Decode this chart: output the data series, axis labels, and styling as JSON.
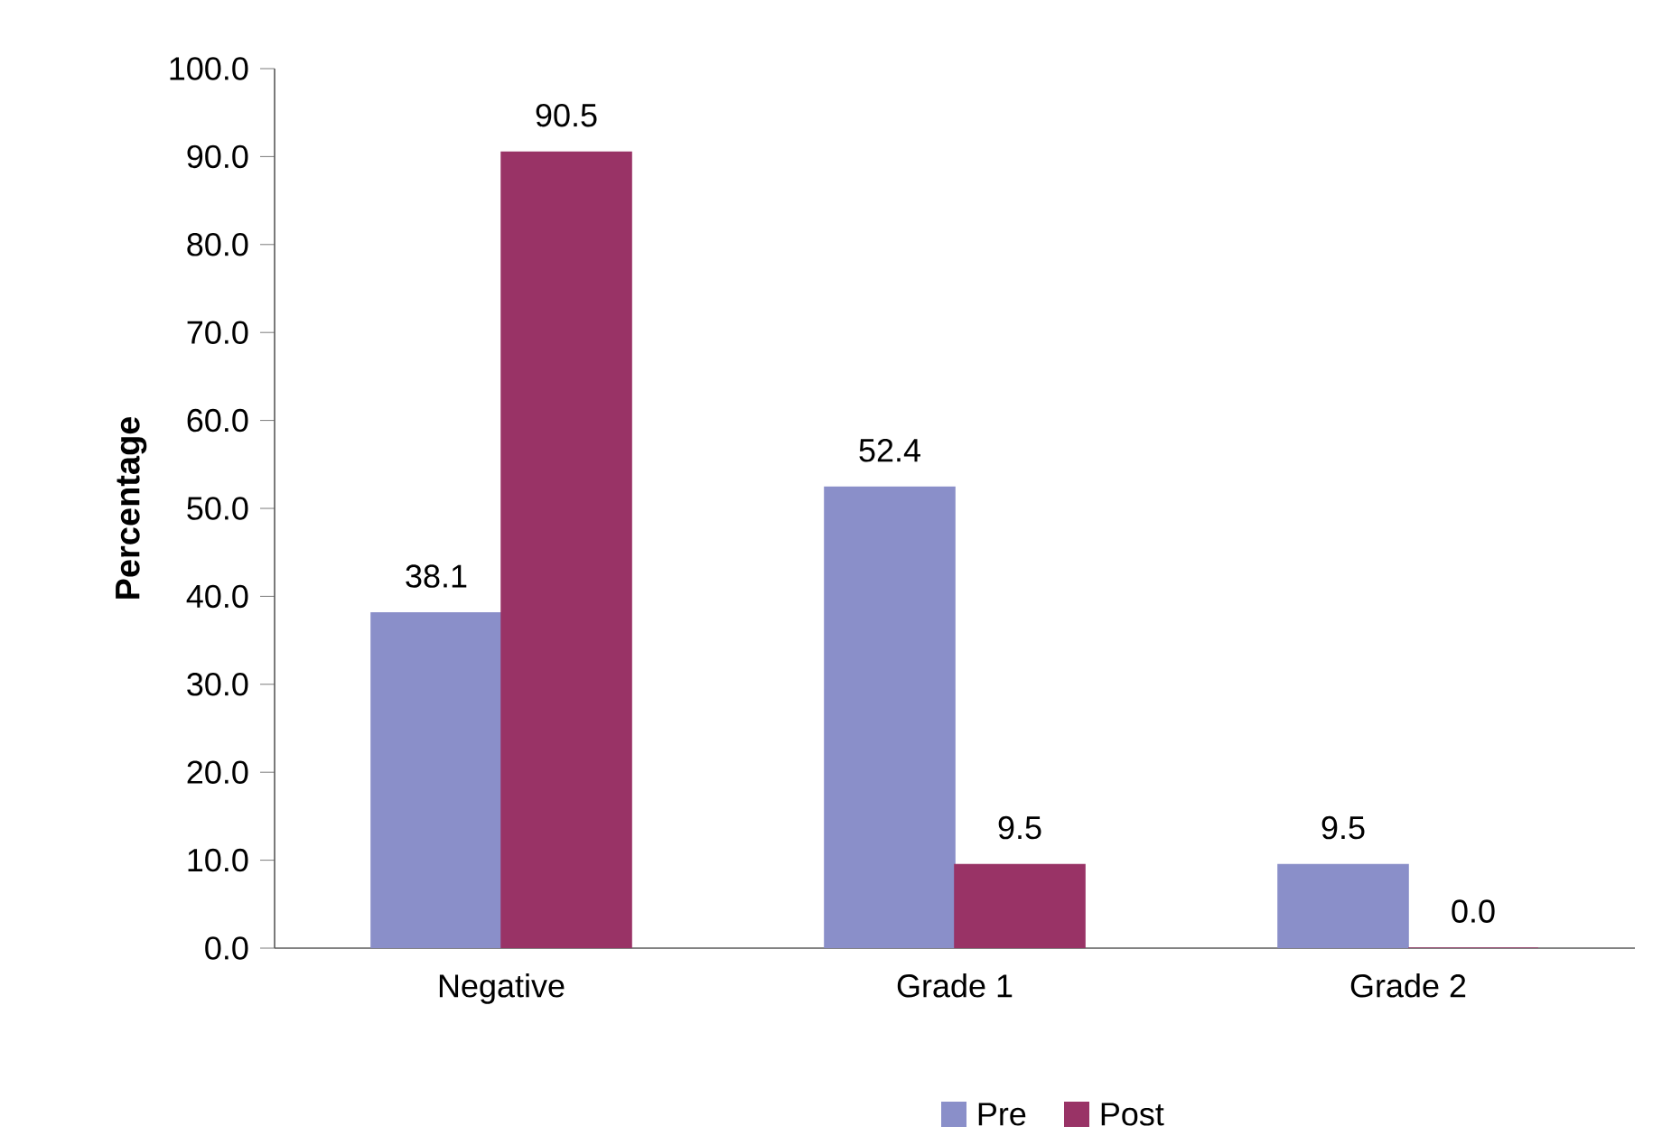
{
  "chart_data": {
    "type": "bar",
    "ylabel": "Percentage",
    "categories": [
      "Negative",
      "Grade 1",
      "Grade 2"
    ],
    "series": [
      {
        "name": "Pre",
        "color": "#8a8fc9",
        "values": [
          38.1,
          52.4,
          9.5
        ],
        "value_labels": [
          "38.1",
          "52.4",
          "9.5"
        ]
      },
      {
        "name": "Post",
        "color": "#993366",
        "values": [
          90.5,
          9.5,
          0.0
        ],
        "value_labels": [
          "90.5",
          "9.5",
          "0.0"
        ]
      }
    ],
    "ylim": [
      0,
      100
    ],
    "yticks": [
      {
        "value": 0,
        "label": "0.0"
      },
      {
        "value": 10,
        "label": "10.0"
      },
      {
        "value": 20,
        "label": "20.0"
      },
      {
        "value": 30,
        "label": "30.0"
      },
      {
        "value": 40,
        "label": "40.0"
      },
      {
        "value": 50,
        "label": "50.0"
      },
      {
        "value": 60,
        "label": "60.0"
      },
      {
        "value": 70,
        "label": "70.0"
      },
      {
        "value": 80,
        "label": "80.0"
      },
      {
        "value": 90,
        "label": "90.0"
      },
      {
        "value": 100,
        "label": "100.0"
      }
    ],
    "grid": false,
    "legend": "bottom"
  }
}
